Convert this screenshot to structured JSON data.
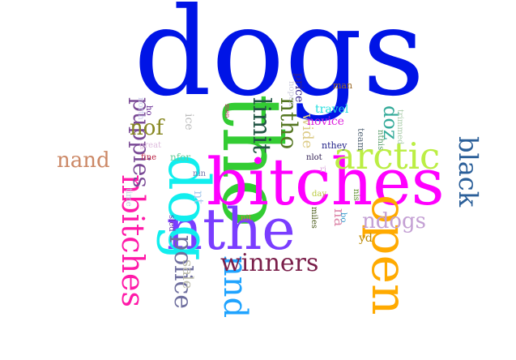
{
  "words": [
    {
      "text": "dogs",
      "color": "#0014e6"
    },
    {
      "text": "tho",
      "color": "#33cc33"
    },
    {
      "text": "bitches",
      "color": "#ff00ff"
    },
    {
      "text": "nthe",
      "color": "#7a3dff"
    },
    {
      "text": "dog",
      "color": "#11eeee"
    },
    {
      "text": "open",
      "color": "#ffaa00"
    },
    {
      "text": "arctic",
      "color": "#bbee44"
    },
    {
      "text": "nbitches",
      "color": "#ff1aa8"
    },
    {
      "text": "nnd",
      "color": "#1fa3ff"
    },
    {
      "text": "winners",
      "color": "#7a1f4a"
    },
    {
      "text": "black",
      "color": "#2b5f99"
    },
    {
      "text": "police",
      "color": "#6e6e9e"
    },
    {
      "text": "puppies",
      "color": "#7a4a96"
    },
    {
      "text": "ndogs",
      "color": "#c4a0d4"
    },
    {
      "text": "nand",
      "color": "#cc8866"
    },
    {
      "text": "ntho",
      "color": "#557722"
    },
    {
      "text": "limit",
      "color": "#225544"
    },
    {
      "text": "nof",
      "color": "#888822"
    },
    {
      "text": "doz",
      "color": "#33aa99"
    },
    {
      "text": "wide",
      "color": "#ddcc88"
    },
    {
      "text": "sale",
      "color": "#bbbbaa"
    },
    {
      "text": "price",
      "color": "#332288"
    },
    {
      "text": "novice",
      "color": "#dd22dd"
    },
    {
      "text": "travel",
      "color": "#22dddd"
    },
    {
      "text": "na",
      "color": "#dd88aa"
    },
    {
      "text": "nt",
      "color": "#aaccee"
    },
    {
      "text": "ice",
      "color": "#bbbbbb"
    },
    {
      "text": "nfor",
      "color": "#66cc99"
    },
    {
      "text": "nthey",
      "color": "#222288"
    },
    {
      "text": "man",
      "color": "#996622"
    },
    {
      "text": "yd",
      "color": "#bb8800"
    },
    {
      "text": "team",
      "color": "#556677"
    },
    {
      "text": "trimmed",
      "color": "#aaccaa"
    },
    {
      "text": "nthis",
      "color": "#559966"
    },
    {
      "text": "north",
      "color": "#ccccee"
    },
    {
      "text": "nopen",
      "color": "#ccccdd"
    },
    {
      "text": "ho",
      "color": "#551188"
    },
    {
      "text": "men",
      "color": "#cc3366"
    },
    {
      "text": "great",
      "color": "#ddbbdd"
    },
    {
      "text": "fine",
      "color": "#bb2244"
    },
    {
      "text": "nlot",
      "color": "#332255"
    },
    {
      "text": "day",
      "color": "#bbcc44"
    },
    {
      "text": "ri",
      "color": "#ddaadd"
    },
    {
      "text": "nis",
      "color": "#558822"
    },
    {
      "text": "bo",
      "color": "#3399cc"
    },
    {
      "text": "miles",
      "color": "#445511"
    },
    {
      "text": "nit",
      "color": "#cc7744"
    },
    {
      "text": "sled",
      "color": "#6633aa"
    },
    {
      "text": "nin",
      "color": "#7777aa"
    },
    {
      "text": "time",
      "color": "#bbccdd"
    }
  ]
}
